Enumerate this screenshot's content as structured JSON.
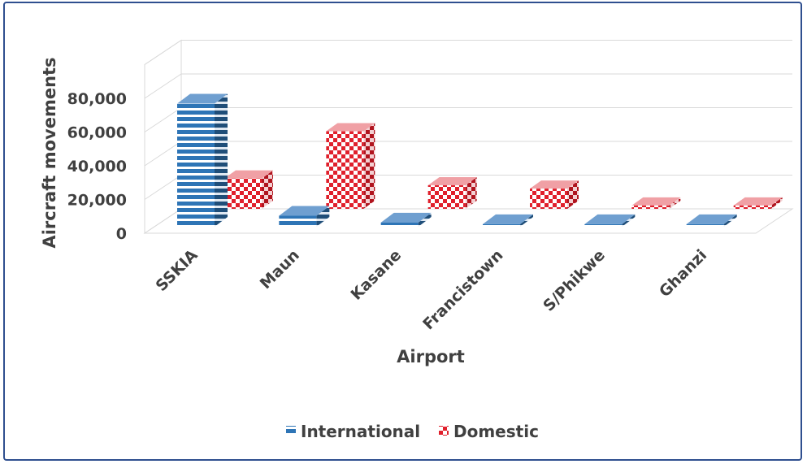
{
  "chart_data": {
    "type": "bar",
    "title": "",
    "xlabel": "Airport",
    "ylabel": "Aircraft movements",
    "categories": [
      "SSKIA",
      "Maun",
      "Kasane",
      "Francistown",
      "S/Phikwe",
      "Ghanzi"
    ],
    "series": [
      {
        "name": "International",
        "values": [
          73000,
          6500,
          2500,
          1500,
          1500,
          1500
        ],
        "color": "#2e75b6",
        "pattern": "horizontal-stripes"
      },
      {
        "name": "Domestic",
        "values": [
          18000,
          46000,
          14000,
          12000,
          2000,
          2000
        ],
        "color": "#e0202c",
        "pattern": "checkered"
      }
    ],
    "yticks": [
      0,
      20000,
      40000,
      60000,
      80000
    ],
    "ytick_labels": [
      "0",
      "20,000",
      "40,000",
      "60,000",
      "80,000"
    ],
    "ylim": [
      0,
      100000
    ],
    "grid": true,
    "legend": "bottom",
    "style": "3d-column"
  }
}
